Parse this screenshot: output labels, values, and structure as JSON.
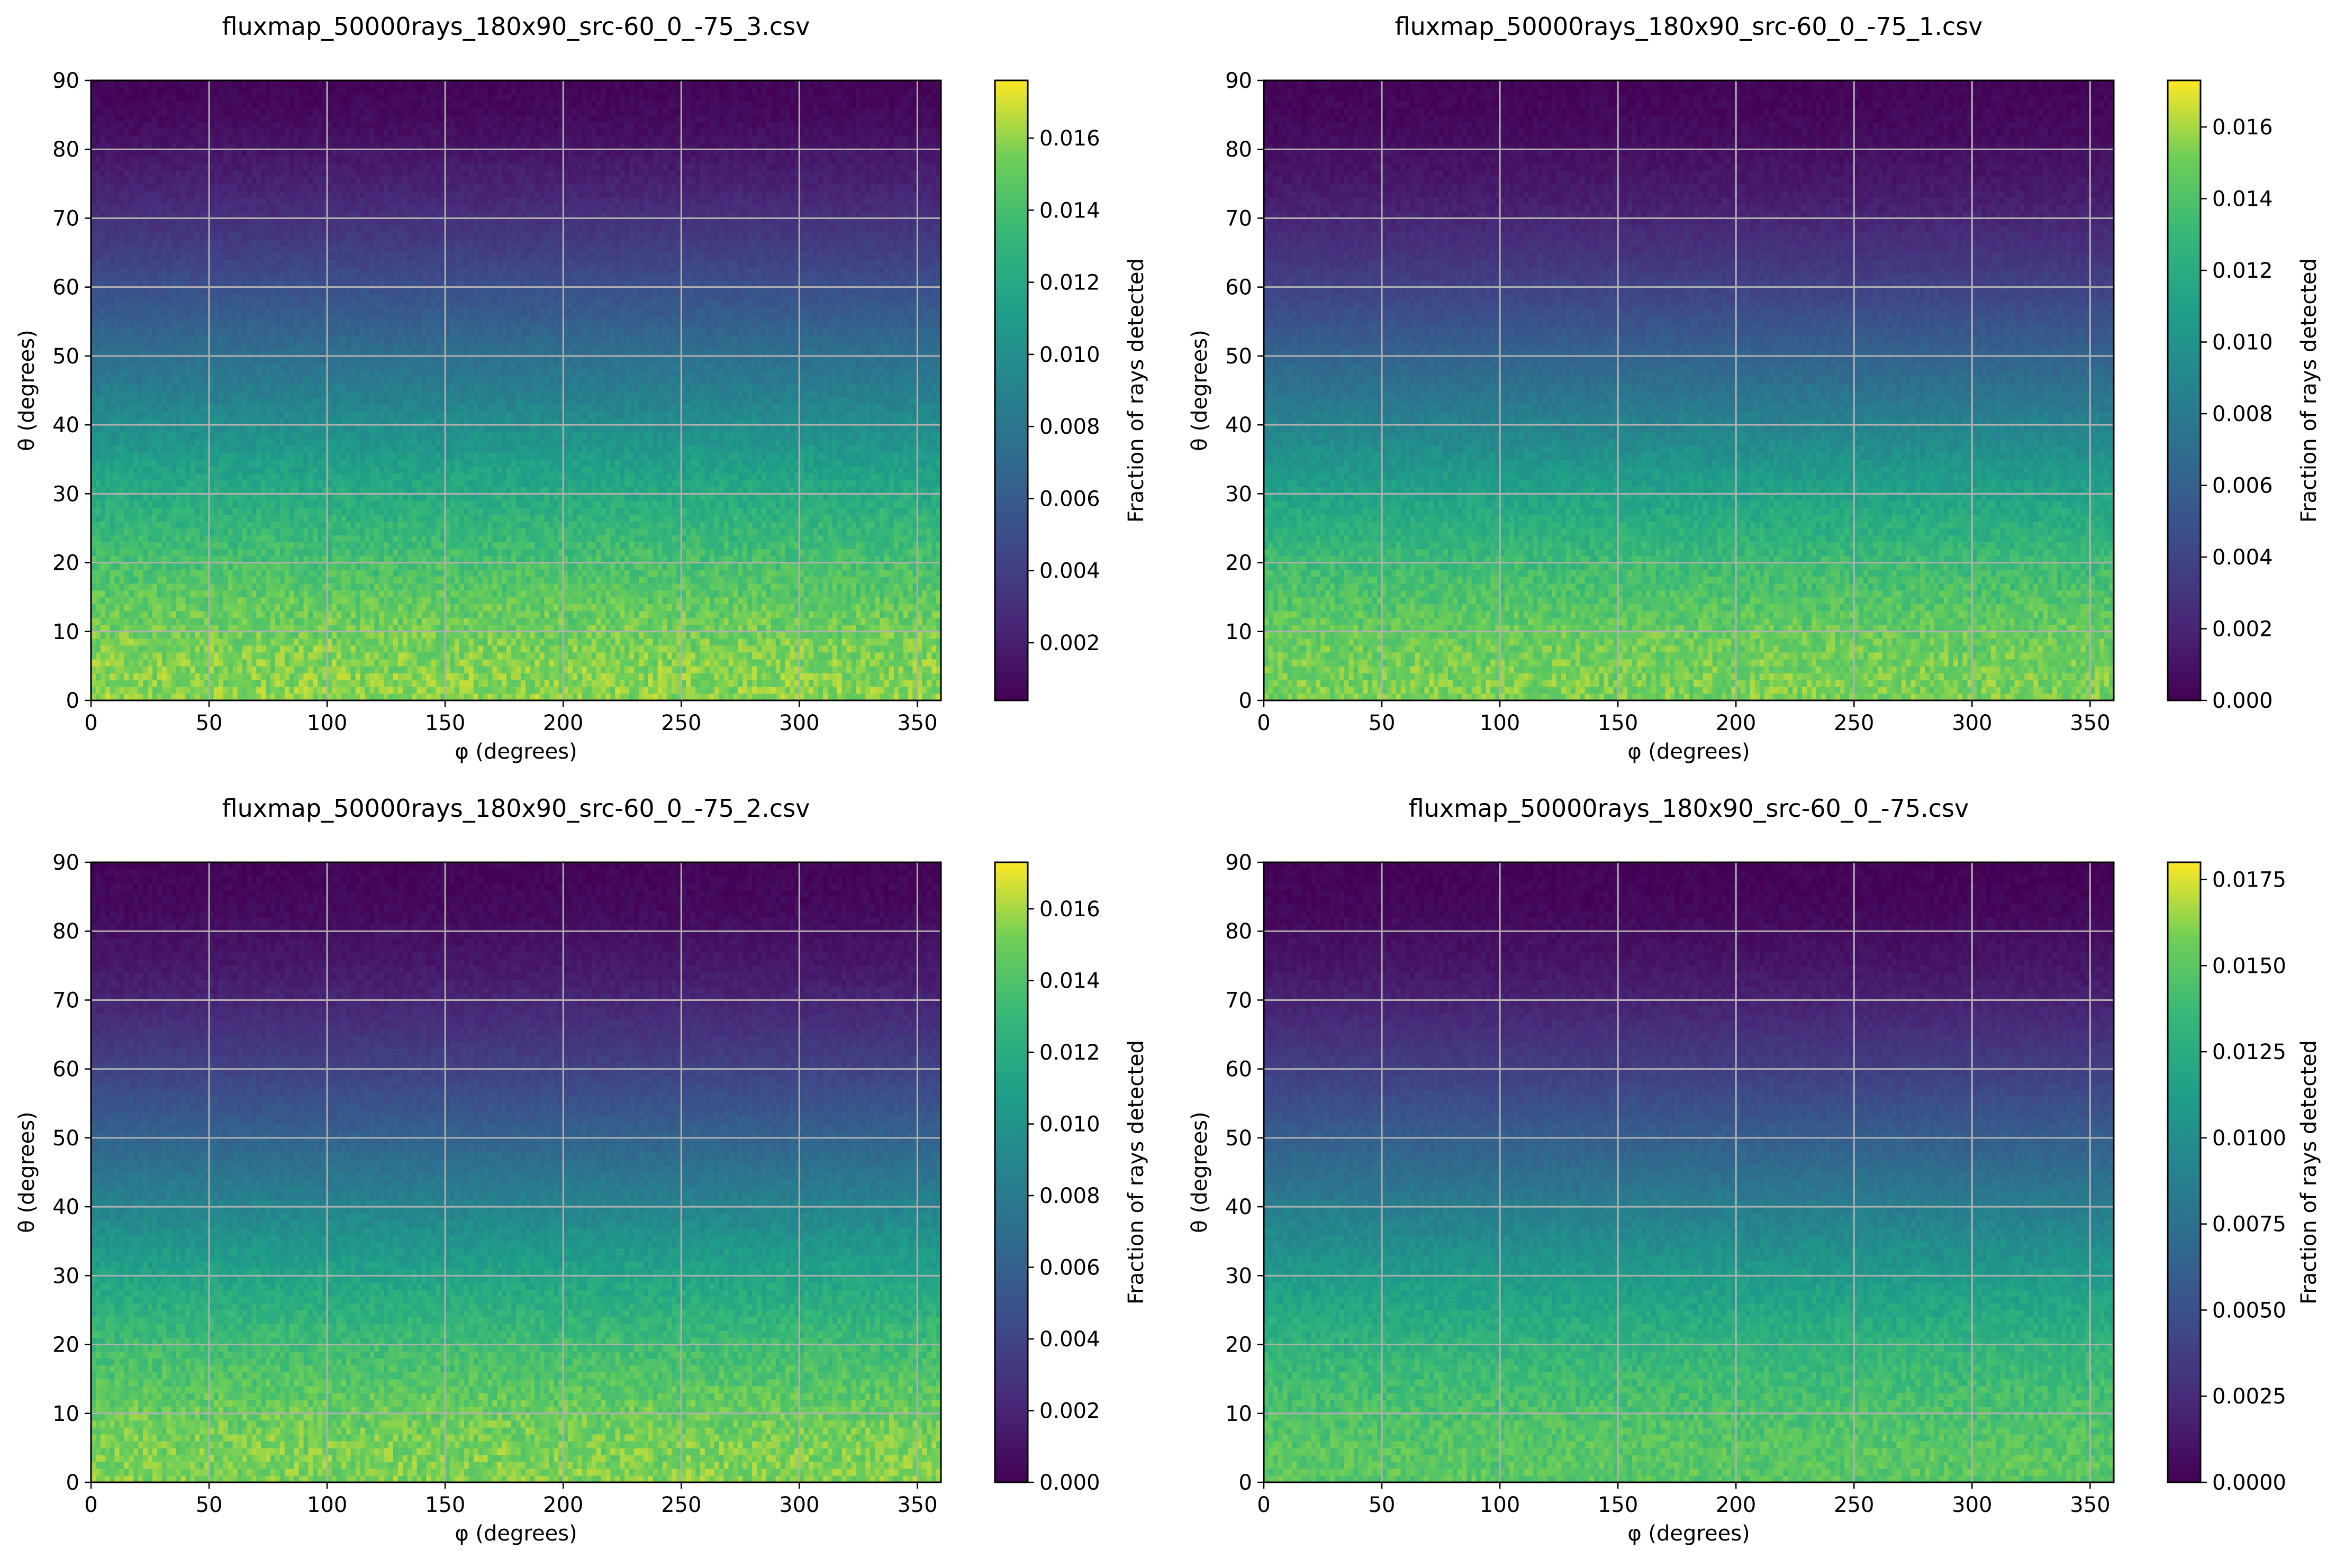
{
  "chart_data": [
    {
      "type": "heatmap",
      "title": "fluxmap_50000rays_180x90_src-60_0_-75_3.csv",
      "xlabel": "φ (degrees)",
      "ylabel": "θ (degrees)",
      "colorbar_label": "Fraction of rays detected",
      "colormap": "viridis",
      "xlim": [
        0,
        360
      ],
      "ylim": [
        0,
        90
      ],
      "x_ticks": [
        0,
        50,
        100,
        150,
        200,
        250,
        300,
        350
      ],
      "y_ticks": [
        0,
        10,
        20,
        30,
        40,
        50,
        60,
        70,
        80,
        90
      ],
      "grid": true,
      "color_range": [
        0.0004,
        0.0176
      ],
      "colorbar_ticks": [
        "0.002",
        "0.004",
        "0.006",
        "0.008",
        "0.010",
        "0.012",
        "0.014",
        "0.016"
      ],
      "theta_profile": {
        "theta": [
          0,
          5,
          10,
          15,
          20,
          25,
          30,
          35,
          40,
          45,
          50,
          55,
          60,
          65,
          70,
          75,
          80,
          85,
          90
        ],
        "value": [
          0.0158,
          0.0157,
          0.0153,
          0.0148,
          0.0141,
          0.0132,
          0.0122,
          0.0111,
          0.0099,
          0.0087,
          0.0075,
          0.0063,
          0.0052,
          0.0041,
          0.0031,
          0.0022,
          0.0015,
          0.0009,
          0.0006
        ]
      }
    },
    {
      "type": "heatmap",
      "title": "fluxmap_50000rays_180x90_src-60_0_-75_1.csv",
      "xlabel": "φ (degrees)",
      "ylabel": "θ (degrees)",
      "colorbar_label": "Fraction of rays detected",
      "colormap": "viridis",
      "xlim": [
        0,
        360
      ],
      "ylim": [
        0,
        90
      ],
      "x_ticks": [
        0,
        50,
        100,
        150,
        200,
        250,
        300,
        350
      ],
      "y_ticks": [
        0,
        10,
        20,
        30,
        40,
        50,
        60,
        70,
        80,
        90
      ],
      "grid": true,
      "color_range": [
        0.0,
        0.0173
      ],
      "colorbar_ticks": [
        "0.000",
        "0.002",
        "0.004",
        "0.006",
        "0.008",
        "0.010",
        "0.012",
        "0.014",
        "0.016"
      ],
      "theta_profile": {
        "theta": [
          0,
          5,
          10,
          15,
          20,
          25,
          30,
          35,
          40,
          45,
          50,
          55,
          60,
          65,
          70,
          75,
          80,
          85,
          90
        ],
        "value": [
          0.0152,
          0.0151,
          0.0147,
          0.0141,
          0.0133,
          0.0123,
          0.0112,
          0.01,
          0.0087,
          0.0074,
          0.0062,
          0.005,
          0.0039,
          0.0029,
          0.002,
          0.0013,
          0.0008,
          0.0004,
          0.0002
        ]
      }
    },
    {
      "type": "heatmap",
      "title": "fluxmap_50000rays_180x90_src-60_0_-75_2.csv",
      "xlabel": "φ (degrees)",
      "ylabel": "θ (degrees)",
      "colorbar_label": "Fraction of rays detected",
      "colormap": "viridis",
      "xlim": [
        0,
        360
      ],
      "ylim": [
        0,
        90
      ],
      "x_ticks": [
        0,
        50,
        100,
        150,
        200,
        250,
        300,
        350
      ],
      "y_ticks": [
        0,
        10,
        20,
        30,
        40,
        50,
        60,
        70,
        80,
        90
      ],
      "grid": true,
      "color_range": [
        0.0,
        0.0173
      ],
      "colorbar_ticks": [
        "0.000",
        "0.002",
        "0.004",
        "0.006",
        "0.008",
        "0.010",
        "0.012",
        "0.014",
        "0.016"
      ],
      "theta_profile": {
        "theta": [
          0,
          5,
          10,
          15,
          20,
          25,
          30,
          35,
          40,
          45,
          50,
          55,
          60,
          65,
          70,
          75,
          80,
          85,
          90
        ],
        "value": [
          0.0153,
          0.0152,
          0.0148,
          0.0142,
          0.0134,
          0.0124,
          0.0113,
          0.0101,
          0.0088,
          0.0075,
          0.0062,
          0.005,
          0.0039,
          0.0029,
          0.002,
          0.0013,
          0.0008,
          0.0004,
          0.0002
        ]
      }
    },
    {
      "type": "heatmap",
      "title": "fluxmap_50000rays_180x90_src-60_0_-75.csv",
      "xlabel": "φ (degrees)",
      "ylabel": "θ (degrees)",
      "colorbar_label": "Fraction of rays detected",
      "colormap": "viridis",
      "xlim": [
        0,
        360
      ],
      "ylim": [
        0,
        90
      ],
      "x_ticks": [
        0,
        50,
        100,
        150,
        200,
        250,
        300,
        350
      ],
      "y_ticks": [
        0,
        10,
        20,
        30,
        40,
        50,
        60,
        70,
        80,
        90
      ],
      "grid": true,
      "color_range": [
        0.0,
        0.018
      ],
      "colorbar_ticks": [
        "0.0000",
        "0.0025",
        "0.0050",
        "0.0075",
        "0.0100",
        "0.0125",
        "0.0150",
        "0.0175"
      ],
      "theta_profile": {
        "theta": [
          0,
          5,
          10,
          15,
          20,
          25,
          30,
          35,
          40,
          45,
          50,
          55,
          60,
          65,
          70,
          75,
          80,
          85,
          90
        ],
        "value": [
          0.015,
          0.0149,
          0.0145,
          0.0139,
          0.0131,
          0.0121,
          0.011,
          0.0098,
          0.0086,
          0.0073,
          0.0061,
          0.0049,
          0.0038,
          0.0028,
          0.0019,
          0.0012,
          0.0007,
          0.0003,
          0.0001
        ]
      }
    }
  ]
}
